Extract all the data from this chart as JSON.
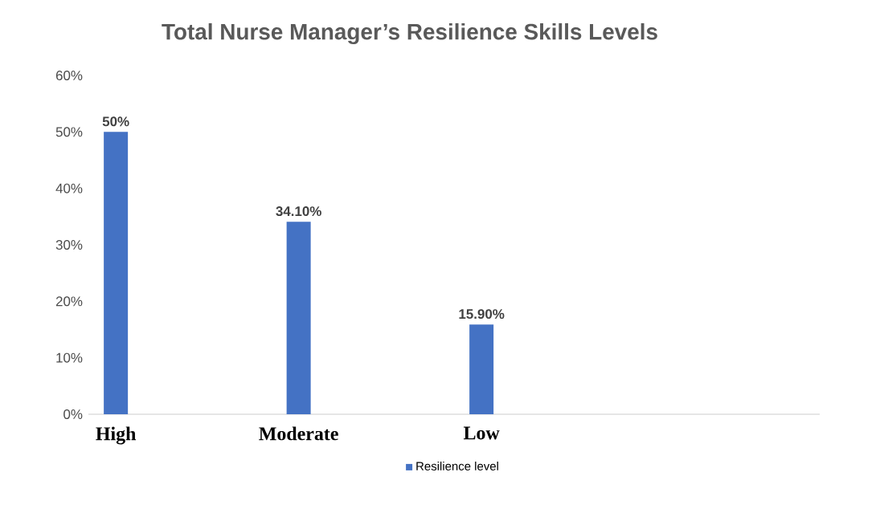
{
  "chart_data": {
    "type": "bar",
    "title": "Total Nurse Manager’s Resilience Skills Levels",
    "categories": [
      "High",
      "Moderate",
      "Low"
    ],
    "series": [
      {
        "name": "Resilience level",
        "color": "#4472c4",
        "values": [
          50,
          34.1,
          15.9
        ],
        "value_labels": [
          "50%",
          "34.10%",
          "15.90%"
        ]
      }
    ],
    "ylim": [
      0,
      60
    ],
    "yticks": [
      {
        "value": 0,
        "label": "0%"
      },
      {
        "value": 10,
        "label": "10%"
      },
      {
        "value": 20,
        "label": "20%"
      },
      {
        "value": 30,
        "label": "30%"
      },
      {
        "value": 40,
        "label": "40%"
      },
      {
        "value": 50,
        "label": "50%"
      },
      {
        "value": 60,
        "label": "60%"
      }
    ],
    "legend": "bottom"
  }
}
